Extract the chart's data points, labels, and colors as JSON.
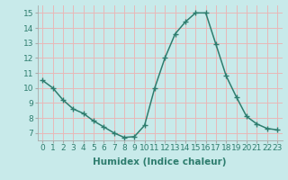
{
  "x": [
    0,
    1,
    2,
    3,
    4,
    5,
    6,
    7,
    8,
    9,
    10,
    11,
    12,
    13,
    14,
    15,
    16,
    17,
    18,
    19,
    20,
    21,
    22,
    23
  ],
  "y": [
    10.5,
    10.0,
    9.2,
    8.6,
    8.3,
    7.8,
    7.4,
    7.0,
    6.7,
    6.75,
    7.5,
    10.0,
    12.0,
    13.6,
    14.4,
    15.0,
    15.0,
    12.9,
    10.8,
    9.4,
    8.1,
    7.6,
    7.3,
    7.2
  ],
  "line_color": "#2e7d6e",
  "marker": "+",
  "marker_size": 4,
  "marker_linewidth": 1.0,
  "bg_color": "#c8eaea",
  "grid_color": "#e8b8b8",
  "xlabel": "Humidex (Indice chaleur)",
  "ylim": [
    6.5,
    15.5
  ],
  "xlim": [
    -0.5,
    23.5
  ],
  "yticks": [
    7,
    8,
    9,
    10,
    11,
    12,
    13,
    14,
    15
  ],
  "xticks": [
    0,
    1,
    2,
    3,
    4,
    5,
    6,
    7,
    8,
    9,
    10,
    11,
    12,
    13,
    14,
    15,
    16,
    17,
    18,
    19,
    20,
    21,
    22,
    23
  ],
  "xlabel_fontsize": 7.5,
  "tick_fontsize": 6.5,
  "line_width": 1.1,
  "spine_color": "#aaaaaa",
  "tick_color": "#2e7d6e",
  "label_color": "#2e7d6e"
}
